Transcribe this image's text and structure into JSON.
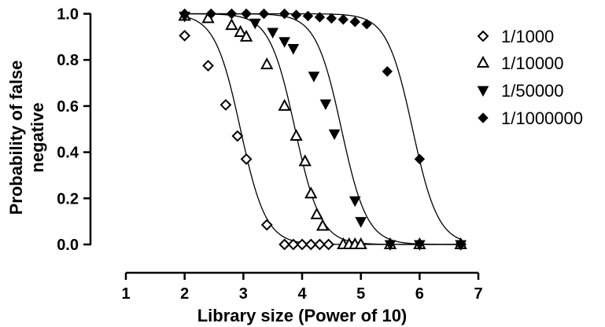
{
  "chart_data": {
    "type": "scatter",
    "xlabel": "Library size (Power of 10)",
    "ylabel": [
      "Probability of false",
      "negative"
    ],
    "xlim": [
      1,
      7
    ],
    "ylim": [
      0,
      1
    ],
    "xticks": [
      "1",
      "2",
      "3",
      "4",
      "5",
      "6",
      "7"
    ],
    "yticks": [
      "0.0",
      "0.2",
      "0.4",
      "0.6",
      "0.8",
      "1.0"
    ],
    "legend_position": "right",
    "fitted_curves": true,
    "series": [
      {
        "name": "1/1000",
        "marker": "diamond-open",
        "x": [
          2.0,
          2.4,
          2.7,
          2.9,
          3.05,
          3.4,
          3.7,
          3.85,
          4.0,
          4.15,
          4.3,
          4.45,
          6.7
        ],
        "y": [
          0.905,
          0.775,
          0.605,
          0.47,
          0.37,
          0.085,
          0.0,
          0.0,
          0.0,
          0.0,
          0.0,
          0.0,
          0.0
        ],
        "curve": {
          "midpoint": 2.95,
          "slope": 4.6
        }
      },
      {
        "name": "1/10000",
        "marker": "triangle-open",
        "x": [
          2.0,
          2.4,
          2.8,
          2.95,
          3.05,
          3.4,
          3.7,
          3.9,
          4.05,
          4.15,
          4.25,
          4.35,
          4.7,
          4.8,
          4.9,
          5.0,
          5.5,
          6.0,
          6.7
        ],
        "y": [
          0.99,
          0.98,
          0.95,
          0.92,
          0.9,
          0.78,
          0.6,
          0.47,
          0.36,
          0.22,
          0.13,
          0.08,
          0.0,
          0.0,
          0.0,
          0.0,
          0.0,
          0.0,
          0.0
        ],
        "curve": {
          "midpoint": 3.88,
          "slope": 4.6
        }
      },
      {
        "name": "1/50000",
        "marker": "triangle-down-filled",
        "x": [
          2.0,
          3.2,
          3.5,
          3.7,
          3.85,
          4.2,
          4.4,
          4.55,
          4.9,
          5.0,
          5.5,
          6.0,
          6.7
        ],
        "y": [
          0.99,
          0.96,
          0.92,
          0.88,
          0.85,
          0.73,
          0.61,
          0.48,
          0.19,
          0.1,
          0.0,
          0.0,
          0.0
        ],
        "curve": {
          "midpoint": 4.67,
          "slope": 4.6
        }
      },
      {
        "name": "1/1000000",
        "marker": "diamond-filled",
        "x": [
          2.0,
          2.45,
          2.8,
          3.05,
          3.35,
          3.7,
          3.9,
          4.1,
          4.3,
          4.5,
          4.7,
          4.9,
          5.1,
          5.45,
          6.0,
          6.7
        ],
        "y": [
          1.0,
          1.0,
          1.0,
          1.0,
          1.0,
          1.0,
          0.995,
          0.99,
          0.985,
          0.98,
          0.975,
          0.965,
          0.955,
          0.75,
          0.37,
          0.0
        ],
        "curve": {
          "midpoint": 5.88,
          "slope": 4.6
        }
      }
    ]
  }
}
